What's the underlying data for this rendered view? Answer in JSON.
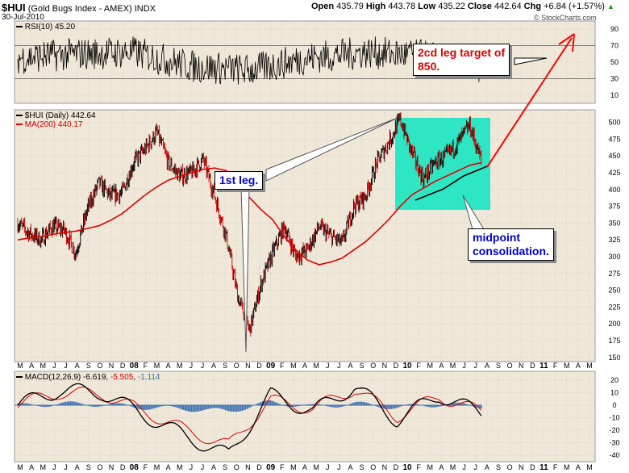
{
  "header": {
    "symbol": "$HUI",
    "name": "(Gold Bugs Index - AMEX)",
    "exchange": "INDX",
    "date": "30-Jul-2010",
    "open_label": "Open",
    "open": "435.79",
    "high_label": "High",
    "high": "443.78",
    "low_label": "Low",
    "low": "435.22",
    "close_label": "Close",
    "close": "442.64",
    "chg_label": "Chg",
    "chg": "+6.84 (+1.57%)",
    "watermark": "© StockCharts.com"
  },
  "panels": {
    "rsi": {
      "label": "RSI(10) 45.20",
      "ticks": [
        10,
        30,
        50,
        70,
        90
      ],
      "levels": [
        30,
        70
      ]
    },
    "price": {
      "label": "$HUI (Daily) 442.64",
      "ma_label": "MA(200) 440.17",
      "ticks": [
        150,
        175,
        200,
        225,
        250,
        275,
        300,
        325,
        350,
        375,
        400,
        425,
        450,
        475,
        500
      ]
    },
    "macd": {
      "label": "MACD(12,26,9)",
      "macd_value": "-6.619",
      "signal_value": "-5.505",
      "hist_value": "-1.114",
      "ticks": [
        -40,
        -30,
        -20,
        -10,
        0,
        10,
        20
      ]
    }
  },
  "x_axis_labels": [
    "M",
    "A",
    "M",
    "J",
    "J",
    "A",
    "S",
    "O",
    "N",
    "D",
    "08",
    "F",
    "M",
    "A",
    "M",
    "J",
    "J",
    "A",
    "S",
    "O",
    "N",
    "D",
    "09",
    "F",
    "M",
    "A",
    "M",
    "J",
    "J",
    "A",
    "S",
    "O",
    "N",
    "D",
    "10",
    "F",
    "M",
    "A",
    "M",
    "J",
    "J",
    "A",
    "S",
    "O",
    "N",
    "D",
    "11",
    "F",
    "M",
    "A",
    "M"
  ],
  "annotations": {
    "target": "2cd leg target of 850.",
    "target_lines": [
      "2cd leg target of",
      "850."
    ],
    "first_leg": "1st leg.",
    "consolidation_lines": [
      "midpoint",
      "consolidation."
    ]
  },
  "colors": {
    "price_up": "#000000",
    "price_down": "#cc0000",
    "ma": "#e00000",
    "box": "#2fe6c4",
    "macd": "#000000",
    "signal": "#e00000",
    "hist": "#3d6fb0",
    "arrow": "#ff0000"
  },
  "chart_data": [
    {
      "type": "line",
      "title": "RSI(10) 45.20",
      "ylim": [
        0,
        100
      ],
      "grid": true,
      "series": [
        {
          "name": "RSI(10)",
          "x": [
            "Mar-07",
            "Sep-07",
            "Mar-08",
            "Sep-08",
            "Dec-08",
            "Jun-09",
            "Dec-09",
            "Jun-10",
            "Jul-10"
          ],
          "values": [
            55,
            60,
            62,
            45,
            40,
            55,
            62,
            58,
            45
          ]
        }
      ]
    },
    {
      "type": "line",
      "title": "$HUI (Daily) 442.64",
      "ylim": [
        150,
        500
      ],
      "grid": true,
      "x": [
        "Mar-07",
        "Apr-07",
        "May-07",
        "Jun-07",
        "Jul-07",
        "Aug-07",
        "Sep-07",
        "Oct-07",
        "Nov-07",
        "Dec-07",
        "Jan-08",
        "Feb-08",
        "Mar-08",
        "Apr-08",
        "May-08",
        "Jun-08",
        "Jul-08",
        "Aug-08",
        "Sep-08",
        "Oct-08",
        "Nov-08",
        "Dec-08",
        "Jan-09",
        "Feb-09",
        "Mar-09",
        "Apr-09",
        "May-09",
        "Jun-09",
        "Jul-09",
        "Aug-09",
        "Sep-09",
        "Oct-09",
        "Nov-09",
        "Dec-09",
        "Jan-10",
        "Feb-10",
        "Mar-10",
        "Apr-10",
        "May-10",
        "Jun-10",
        "Jul-10"
      ],
      "series": [
        {
          "name": "$HUI",
          "values": [
            350,
            335,
            325,
            345,
            340,
            305,
            370,
            410,
            390,
            395,
            440,
            460,
            485,
            440,
            420,
            425,
            445,
            390,
            330,
            240,
            190,
            260,
            305,
            345,
            300,
            310,
            345,
            330,
            320,
            375,
            390,
            440,
            470,
            505,
            455,
            415,
            440,
            450,
            470,
            495,
            442.64
          ]
        },
        {
          "name": "MA(200)",
          "values": [
            325,
            328,
            330,
            333,
            336,
            338,
            342,
            346,
            354,
            364,
            378,
            392,
            404,
            414,
            420,
            425,
            430,
            432,
            428,
            408,
            388,
            370,
            355,
            330,
            310,
            295,
            288,
            292,
            298,
            310,
            322,
            338,
            355,
            375,
            392,
            402,
            412,
            420,
            428,
            436,
            440.17
          ]
        }
      ]
    },
    {
      "type": "line",
      "title": "MACD(12,26,9)",
      "ylim": [
        -40,
        20
      ],
      "grid": true,
      "series": [
        {
          "name": "MACD",
          "x": [
            "Mar-07",
            "Sep-07",
            "Mar-08",
            "Aug-08",
            "Oct-08",
            "Nov-08",
            "Jan-09",
            "Jun-09",
            "Nov-09",
            "Feb-10",
            "May-10",
            "Jul-10"
          ],
          "values": [
            0,
            12,
            10,
            -8,
            -25,
            -40,
            8,
            -5,
            15,
            -12,
            8,
            -6.619
          ]
        },
        {
          "name": "Signal",
          "values": [
            1,
            10,
            9,
            -5,
            -20,
            -32,
            4,
            -3,
            13,
            -9,
            7,
            -5.505
          ]
        },
        {
          "name": "Histogram",
          "values": [
            -1,
            2,
            1,
            -3,
            -5,
            -8,
            4,
            -2,
            2,
            -3,
            1,
            -1.114
          ]
        }
      ]
    }
  ]
}
